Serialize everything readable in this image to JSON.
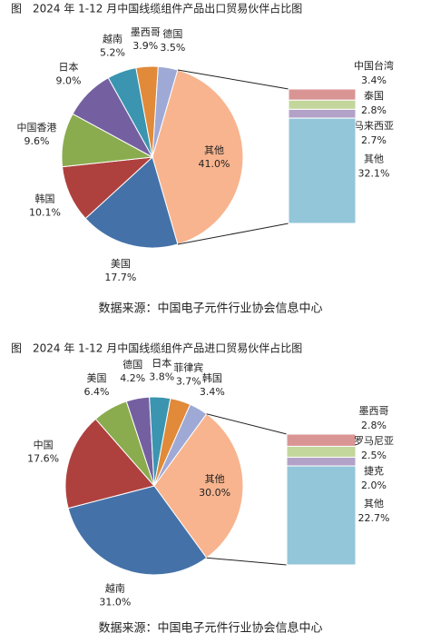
{
  "chart_data": [
    {
      "type": "pie-of-bar",
      "title": "图　2024 年 1-12 月中国线缆组件产品出口贸易伙伴占比图",
      "categories": [
        "德国",
        "其他",
        "美国",
        "韩国",
        "中国香港",
        "日本",
        "越南",
        "墨西哥"
      ],
      "values": [
        3.5,
        41.0,
        17.7,
        10.1,
        9.6,
        9.0,
        5.2,
        3.9
      ],
      "value_labels": [
        "3.5%",
        "41.0%",
        "17.7%",
        "10.1%",
        "9.6%",
        "9.0%",
        "5.2%",
        "3.9%"
      ],
      "colors": [
        "#9fa9d6",
        "#f8b48e",
        "#4472a8",
        "#ae413e",
        "#8aac4e",
        "#7460a0",
        "#3b95b0",
        "#e08a3a"
      ],
      "bar": {
        "categories": [
          "中国台湾",
          "泰国",
          "马来西亚",
          "其他"
        ],
        "values": [
          3.4,
          2.8,
          2.7,
          32.1
        ],
        "value_labels": [
          "3.4%",
          "2.8%",
          "2.7%",
          "32.1%"
        ],
        "colors": [
          "#d99594",
          "#c3d69b",
          "#b3a2c7",
          "#93c6d8"
        ]
      },
      "source": "数据来源：中国电子元件行业协会信息中心"
    },
    {
      "type": "pie-of-bar",
      "title": "图　2024 年 1-12 月中国线缆组件产品进口贸易伙伴占比图",
      "categories": [
        "韩国",
        "其他",
        "越南",
        "中国",
        "美国",
        "德国",
        "日本",
        "菲律宾"
      ],
      "values": [
        3.4,
        30.0,
        31.0,
        17.6,
        6.4,
        4.2,
        3.8,
        3.7
      ],
      "value_labels": [
        "3.4%",
        "30.0%",
        "31.0%",
        "17.6%",
        "6.4%",
        "4.2%",
        "3.8%",
        "3.7%"
      ],
      "colors": [
        "#9fa9d6",
        "#f8b48e",
        "#4472a8",
        "#ae413e",
        "#8aac4e",
        "#7460a0",
        "#3b95b0",
        "#e08a3a"
      ],
      "bar": {
        "categories": [
          "墨西哥",
          "罗马尼亚",
          "捷克",
          "其他"
        ],
        "values": [
          2.8,
          2.5,
          2.0,
          22.7
        ],
        "value_labels": [
          "2.8%",
          "2.5%",
          "2.0%",
          "22.7%"
        ],
        "colors": [
          "#d99594",
          "#c3d69b",
          "#b3a2c7",
          "#93c6d8"
        ]
      },
      "source": "数据来源：中国电子元件行业协会信息中心"
    }
  ]
}
